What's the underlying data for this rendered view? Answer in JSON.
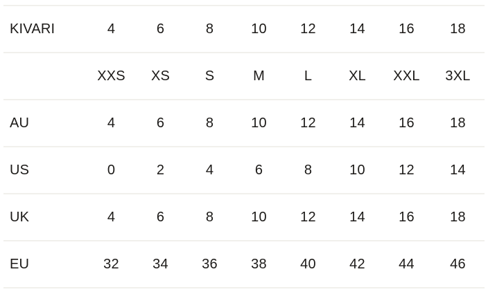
{
  "colors": {
    "background": "#ffffff",
    "text": "#1c1a18",
    "divider": "#f1f0ec"
  },
  "chart_data": {
    "type": "table",
    "description_visible_brand": "KIVARI",
    "row_labels": [
      "KIVARI",
      "",
      "AU",
      "US",
      "UK",
      "EU"
    ],
    "size_names": [
      "XXS",
      "XS",
      "S",
      "M",
      "L",
      "XL",
      "XXL",
      "3XL"
    ],
    "rows": [
      [
        "4",
        "6",
        "8",
        "10",
        "12",
        "14",
        "16",
        "18"
      ],
      [
        "XXS",
        "XS",
        "S",
        "M",
        "L",
        "XL",
        "XXL",
        "3XL"
      ],
      [
        "4",
        "6",
        "8",
        "10",
        "12",
        "14",
        "16",
        "18"
      ],
      [
        "0",
        "2",
        "4",
        "6",
        "8",
        "10",
        "12",
        "14"
      ],
      [
        "4",
        "6",
        "8",
        "10",
        "12",
        "14",
        "16",
        "18"
      ],
      [
        "32",
        "34",
        "36",
        "38",
        "40",
        "42",
        "44",
        "46"
      ]
    ]
  }
}
